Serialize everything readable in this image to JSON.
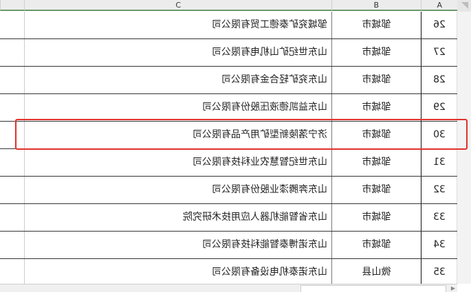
{
  "columns": [
    "A",
    "B",
    "C"
  ],
  "rows": [
    {
      "a": "26",
      "b": "邹城市",
      "c": "邹城兖矿泰德工贸有限公司"
    },
    {
      "a": "27",
      "b": "邹城市",
      "c": "山东世纪矿山机电有限公司"
    },
    {
      "a": "28",
      "b": "邹城市",
      "c": "山东兖矿轻合金有限公司"
    },
    {
      "a": "29",
      "b": "邹城市",
      "c": "山东益凯德液压股份有限公司"
    },
    {
      "a": "30",
      "b": "邹城市",
      "c": "济宁落陵新型矿用产品有限公司"
    },
    {
      "a": "31",
      "b": "邹城市",
      "c": "山东世纪智慧农业科技有限公司"
    },
    {
      "a": "32",
      "b": "邹城市",
      "c": "山东奔腾漆业股份有限公司"
    },
    {
      "a": "33",
      "b": "邹城市",
      "c": "山东省智能机器人应用技术研究院"
    },
    {
      "a": "34",
      "b": "邹城市",
      "c": "山东诺博泰智能科技有限公司"
    },
    {
      "a": "35",
      "b": "微山县",
      "c": "山东诺泰机电设备有限公司"
    }
  ],
  "highlight_row": "30",
  "highlight_color": "#e0302a",
  "mirrored": true
}
